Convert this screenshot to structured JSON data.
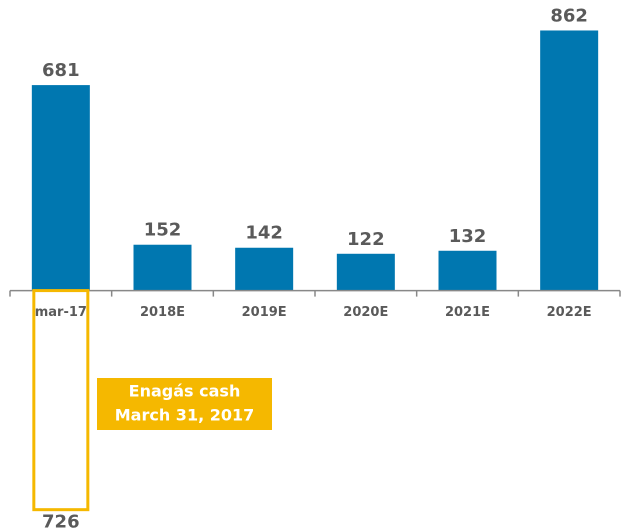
{
  "chart_data": {
    "type": "bar",
    "categories": [
      "mar-17",
      "2018E",
      "2019E",
      "2020E",
      "2021E",
      "2022E"
    ],
    "values": [
      681,
      152,
      142,
      122,
      132,
      862
    ],
    "color": "#0077b0",
    "cash": 726,
    "cash_color": "#f5b800",
    "annotation": [
      "Enagás cash",
      "March 31, 2017"
    ],
    "ylim": [
      -800,
      963
    ]
  }
}
